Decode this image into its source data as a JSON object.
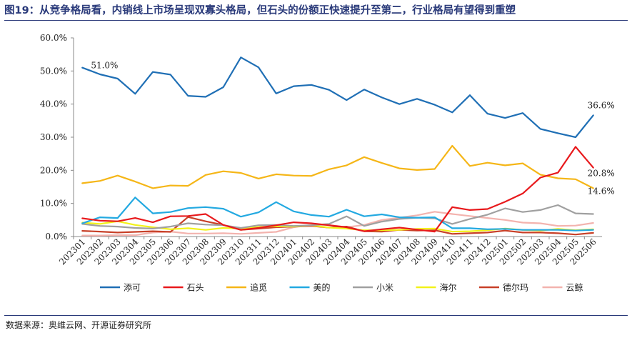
{
  "title": "图19：从竞争格局看，内销线上市场呈现双寡头格局，但石头的份额正快速提升至第二，行业格局有望得到重塑",
  "source": "数据来源：奥维云网、开源证券研究所",
  "chart_data": {
    "type": "line",
    "ylim": [
      0,
      60
    ],
    "yticks": [
      "0.0%",
      "10.0%",
      "20.0%",
      "30.0%",
      "40.0%",
      "50.0%",
      "60.0%"
    ],
    "y_unit": "%",
    "grid": false,
    "legend_position": "bottom",
    "categories": [
      "202301",
      "202302",
      "202303",
      "202304",
      "202305",
      "202306",
      "202307",
      "202308",
      "202309",
      "202310",
      "202311",
      "202312",
      "202401",
      "202402",
      "202403",
      "202404",
      "202405",
      "202406",
      "202407",
      "202408",
      "202409",
      "202410",
      "202411",
      "202412",
      "202501",
      "202502",
      "202503",
      "202504",
      "202505",
      "202506"
    ],
    "series": [
      {
        "name": "添可",
        "color": "#1f6fb5",
        "values": [
          51.0,
          49.0,
          47.7,
          43.1,
          49.7,
          48.9,
          42.5,
          42.2,
          45.1,
          54.1,
          51.1,
          43.2,
          45.4,
          45.8,
          44.3,
          41.2,
          44.4,
          42.0,
          40.0,
          41.6,
          39.8,
          37.5,
          42.7,
          37.1,
          35.8,
          37.3,
          32.5,
          31.2,
          30.0,
          36.6
        ]
      },
      {
        "name": "石头",
        "color": "#e8191c",
        "values": [
          5.5,
          4.8,
          4.6,
          5.6,
          4.3,
          6.1,
          6.2,
          6.8,
          3.5,
          2.0,
          2.6,
          3.4,
          4.3,
          4.0,
          3.4,
          2.8,
          1.6,
          2.2,
          2.7,
          2.1,
          1.5,
          8.9,
          8.0,
          8.3,
          10.5,
          13.0,
          17.8,
          19.3,
          27.1,
          20.8
        ]
      },
      {
        "name": "追觅",
        "color": "#f5b617",
        "values": [
          16.1,
          16.8,
          18.4,
          16.6,
          14.6,
          15.4,
          15.3,
          18.6,
          19.7,
          19.2,
          17.5,
          18.8,
          18.4,
          18.3,
          20.3,
          21.5,
          24.0,
          22.2,
          20.6,
          20.1,
          20.4,
          27.4,
          21.3,
          22.3,
          21.5,
          22.1,
          18.7,
          17.6,
          17.3,
          14.6
        ]
      },
      {
        "name": "美的",
        "color": "#23a9e1",
        "values": [
          4.0,
          5.8,
          5.6,
          11.8,
          7.0,
          7.4,
          8.6,
          8.9,
          8.4,
          6.0,
          7.3,
          10.4,
          7.6,
          6.5,
          6.0,
          8.1,
          6.1,
          6.7,
          5.8,
          5.7,
          5.8,
          2.5,
          2.5,
          2.2,
          2.3,
          2.0,
          2.0,
          2.0,
          1.8,
          2.0
        ]
      },
      {
        "name": "小米",
        "color": "#a0a0a0",
        "values": [
          3.8,
          3.2,
          3.0,
          2.6,
          2.4,
          3.0,
          4.0,
          3.6,
          3.4,
          2.6,
          3.4,
          3.5,
          3.2,
          3.4,
          3.8,
          6.1,
          3.2,
          4.5,
          5.3,
          5.7,
          5.5,
          3.8,
          5.3,
          6.6,
          8.5,
          7.4,
          8.0,
          9.5,
          7.0,
          6.8
        ]
      },
      {
        "name": "海尔",
        "color": "#f2f21a",
        "values": [
          4.2,
          3.8,
          4.6,
          3.5,
          2.8,
          2.2,
          2.5,
          2.0,
          2.6,
          2.4,
          2.9,
          3.1,
          3.0,
          3.4,
          2.7,
          2.4,
          1.9,
          1.9,
          2.0,
          2.3,
          2.4,
          1.5,
          1.6,
          1.9,
          2.4,
          2.0,
          1.8,
          2.3,
          1.9,
          2.2
        ]
      },
      {
        "name": "德尔玛",
        "color": "#c84028",
        "values": [
          1.7,
          1.5,
          1.2,
          1.4,
          1.6,
          1.4,
          5.9,
          4.6,
          3.5,
          2.0,
          2.4,
          2.8,
          3.0,
          3.2,
          2.7,
          3.0,
          1.6,
          1.5,
          2.0,
          1.8,
          1.9,
          0.8,
          1.0,
          1.2,
          1.8,
          1.2,
          1.2,
          1.0,
          0.6,
          1.1
        ]
      },
      {
        "name": "云鲸",
        "color": "#f3b3ae",
        "values": [
          0.3,
          0.3,
          0.4,
          0.4,
          1.2,
          1.5,
          0.9,
          0.9,
          1.0,
          0.8,
          1.1,
          1.4,
          2.8,
          3.5,
          3.5,
          2.8,
          3.5,
          5.0,
          5.7,
          6.4,
          7.5,
          6.8,
          6.2,
          5.6,
          5.0,
          4.2,
          4.0,
          3.2,
          3.3,
          4.1
        ]
      }
    ],
    "annotations": [
      {
        "series": "添可",
        "category": "202301",
        "text": "51.0%"
      },
      {
        "series": "添可",
        "category": "202506",
        "text": "36.6%"
      },
      {
        "series": "石头",
        "category": "202506",
        "text": "20.8%"
      },
      {
        "series": "追觅",
        "category": "202506",
        "text": "14.6%"
      }
    ]
  }
}
